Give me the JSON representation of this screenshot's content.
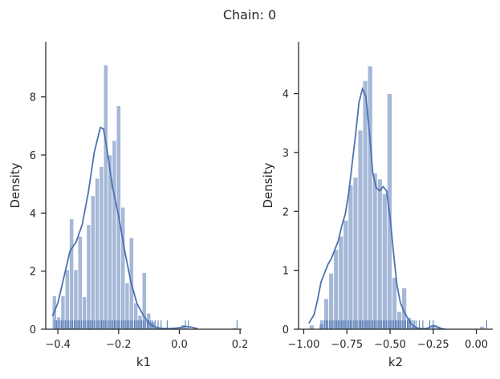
{
  "title": "Chain: 0",
  "colors": {
    "bar": "#4c72b0",
    "bar_fill_opacity": 0.5,
    "line": "#4c72b0",
    "axis": "#262626"
  },
  "chart_data": [
    {
      "type": "histogram",
      "xlabel": "k1",
      "ylabel": "Density",
      "xlim": [
        -0.44,
        0.205
      ],
      "ylim": [
        0,
        9.9
      ],
      "xticks": [
        -0.4,
        -0.2,
        0.0,
        0.2
      ],
      "xtick_labels": [
        "−0.4",
        "−0.2",
        "0.0",
        "0.2"
      ],
      "yticks": [
        0,
        2,
        4,
        6,
        8
      ],
      "ytick_labels": [
        "0",
        "2",
        "4",
        "6",
        "8"
      ],
      "bin_edges": [
        -0.4185,
        -0.4044,
        -0.3903,
        -0.3762,
        -0.3621,
        -0.348,
        -0.3339,
        -0.3198,
        -0.3057,
        -0.2916,
        -0.2775,
        -0.2634,
        -0.2493,
        -0.2352,
        -0.2211,
        -0.207,
        -0.1929,
        -0.1788,
        -0.1647,
        -0.1506,
        -0.1365,
        -0.1224,
        -0.1083,
        -0.0942,
        -0.0801,
        -0.066,
        -0.0519,
        -0.0378,
        -0.0237,
        -0.0096,
        0.0045,
        0.0186,
        0.0327,
        0.0468,
        0.0609,
        0.075,
        0.0891,
        0.1032,
        0.1173,
        0.1314,
        0.1455,
        0.1596,
        0.1737,
        0.1878
      ],
      "density": [
        1.15,
        0.42,
        1.15,
        2.05,
        3.8,
        2.05,
        3.2,
        1.12,
        3.6,
        4.6,
        5.2,
        5.6,
        9.1,
        6.0,
        6.5,
        7.7,
        4.2,
        1.6,
        3.15,
        0.9,
        0.48,
        1.95,
        0.55,
        0.25,
        0.08,
        0.05,
        0,
        0,
        0,
        0,
        0.15,
        0.05,
        0,
        0,
        0,
        0,
        0,
        0,
        0,
        0,
        0,
        0,
        0.05
      ],
      "kde": {
        "x": [
          -0.418,
          -0.4,
          -0.38,
          -0.36,
          -0.34,
          -0.32,
          -0.3,
          -0.28,
          -0.26,
          -0.25,
          -0.24,
          -0.22,
          -0.2,
          -0.18,
          -0.16,
          -0.14,
          -0.12,
          -0.1,
          -0.08,
          -0.06,
          -0.04,
          -0.02,
          0.0,
          0.02,
          0.04,
          0.06
        ],
        "y": [
          0.45,
          0.9,
          1.8,
          2.7,
          3.0,
          3.6,
          4.7,
          6.1,
          6.95,
          6.9,
          6.3,
          4.9,
          3.9,
          2.7,
          1.65,
          0.9,
          0.5,
          0.2,
          0.08,
          0.03,
          0.02,
          0.03,
          0.05,
          0.1,
          0.07,
          0.02
        ]
      },
      "rug": [
        -0.41,
        -0.404,
        -0.396,
        -0.389,
        -0.383,
        -0.376,
        -0.37,
        -0.364,
        -0.358,
        -0.352,
        -0.346,
        -0.34,
        -0.334,
        -0.328,
        -0.322,
        -0.316,
        -0.31,
        -0.304,
        -0.298,
        -0.292,
        -0.286,
        -0.28,
        -0.274,
        -0.268,
        -0.262,
        -0.256,
        -0.25,
        -0.244,
        -0.238,
        -0.232,
        -0.226,
        -0.22,
        -0.214,
        -0.208,
        -0.202,
        -0.196,
        -0.19,
        -0.184,
        -0.178,
        -0.172,
        -0.166,
        -0.16,
        -0.154,
        -0.148,
        -0.142,
        -0.136,
        -0.13,
        -0.124,
        -0.118,
        -0.112,
        -0.106,
        -0.1,
        -0.094,
        -0.088,
        -0.08,
        -0.07,
        -0.06,
        -0.04,
        0.02,
        0.03,
        0.19
      ]
    },
    {
      "type": "histogram",
      "xlabel": "k2",
      "ylabel": "Density",
      "xlim": [
        -1.03,
        0.095
      ],
      "ylim": [
        0,
        4.88
      ],
      "xticks": [
        -1.0,
        -0.75,
        -0.5,
        -0.25,
        0.0
      ],
      "xtick_labels": [
        "−1.00",
        "−0.75",
        "−0.50",
        "−0.25",
        "0.00"
      ],
      "yticks": [
        0,
        1,
        2,
        3,
        4
      ],
      "ytick_labels": [
        "0",
        "1",
        "2",
        "3",
        "4"
      ],
      "bin_edges": [
        -0.968,
        -0.9398,
        -0.9116,
        -0.8834,
        -0.8552,
        -0.827,
        -0.7988,
        -0.7706,
        -0.7424,
        -0.7142,
        -0.686,
        -0.6578,
        -0.6296,
        -0.6014,
        -0.5732,
        -0.545,
        -0.5168,
        -0.4886,
        -0.4604,
        -0.4322,
        -0.404,
        -0.3758,
        -0.3476,
        -0.3194,
        -0.2912,
        -0.263,
        -0.2348,
        -0.2066,
        -0.1784,
        -0.1502,
        -0.122,
        -0.0938,
        -0.0656,
        -0.0374,
        -0.0092,
        0.019,
        0.0472
      ],
      "density": [
        0.07,
        0,
        0.09,
        0.52,
        0.95,
        1.35,
        1.58,
        1.85,
        2.45,
        2.58,
        3.38,
        4.22,
        4.47,
        2.65,
        2.55,
        2.3,
        4.0,
        0.88,
        0.3,
        0.7,
        0.2,
        0.05,
        0,
        0,
        0,
        0.05,
        0.05,
        0,
        0,
        0,
        0,
        0,
        0,
        0,
        0,
        0.05
      ],
      "kde": {
        "x": [
          -0.97,
          -0.94,
          -0.92,
          -0.9,
          -0.88,
          -0.86,
          -0.84,
          -0.82,
          -0.8,
          -0.78,
          -0.76,
          -0.74,
          -0.72,
          -0.7,
          -0.68,
          -0.66,
          -0.64,
          -0.62,
          -0.6,
          -0.58,
          -0.56,
          -0.54,
          -0.52,
          -0.5,
          -0.48,
          -0.46,
          -0.44,
          -0.42,
          -0.4,
          -0.38,
          -0.36,
          -0.34,
          -0.32,
          -0.3,
          -0.28,
          -0.26,
          -0.24,
          -0.22,
          -0.2,
          -0.18
        ],
        "y": [
          0.1,
          0.25,
          0.5,
          0.8,
          0.95,
          1.1,
          1.2,
          1.35,
          1.5,
          1.75,
          1.95,
          2.3,
          2.8,
          3.3,
          3.85,
          4.08,
          3.95,
          3.35,
          2.65,
          2.4,
          2.35,
          2.42,
          2.35,
          1.9,
          1.3,
          0.75,
          0.45,
          0.3,
          0.2,
          0.1,
          0.05,
          0.02,
          0.01,
          0.01,
          0.02,
          0.05,
          0.06,
          0.03,
          0.01,
          0
        ]
      },
      "rug": [
        -0.9,
        -0.89,
        -0.88,
        -0.87,
        -0.86,
        -0.85,
        -0.84,
        -0.83,
        -0.82,
        -0.81,
        -0.8,
        -0.79,
        -0.78,
        -0.77,
        -0.76,
        -0.75,
        -0.74,
        -0.73,
        -0.72,
        -0.71,
        -0.7,
        -0.69,
        -0.68,
        -0.67,
        -0.66,
        -0.65,
        -0.64,
        -0.63,
        -0.62,
        -0.61,
        -0.6,
        -0.59,
        -0.58,
        -0.57,
        -0.56,
        -0.55,
        -0.54,
        -0.53,
        -0.52,
        -0.51,
        -0.5,
        -0.49,
        -0.48,
        -0.47,
        -0.46,
        -0.45,
        -0.44,
        -0.43,
        -0.42,
        -0.41,
        -0.4,
        -0.39,
        -0.38,
        -0.37,
        -0.36,
        -0.35,
        -0.33,
        -0.31,
        -0.27,
        -0.25,
        0.06
      ]
    }
  ]
}
